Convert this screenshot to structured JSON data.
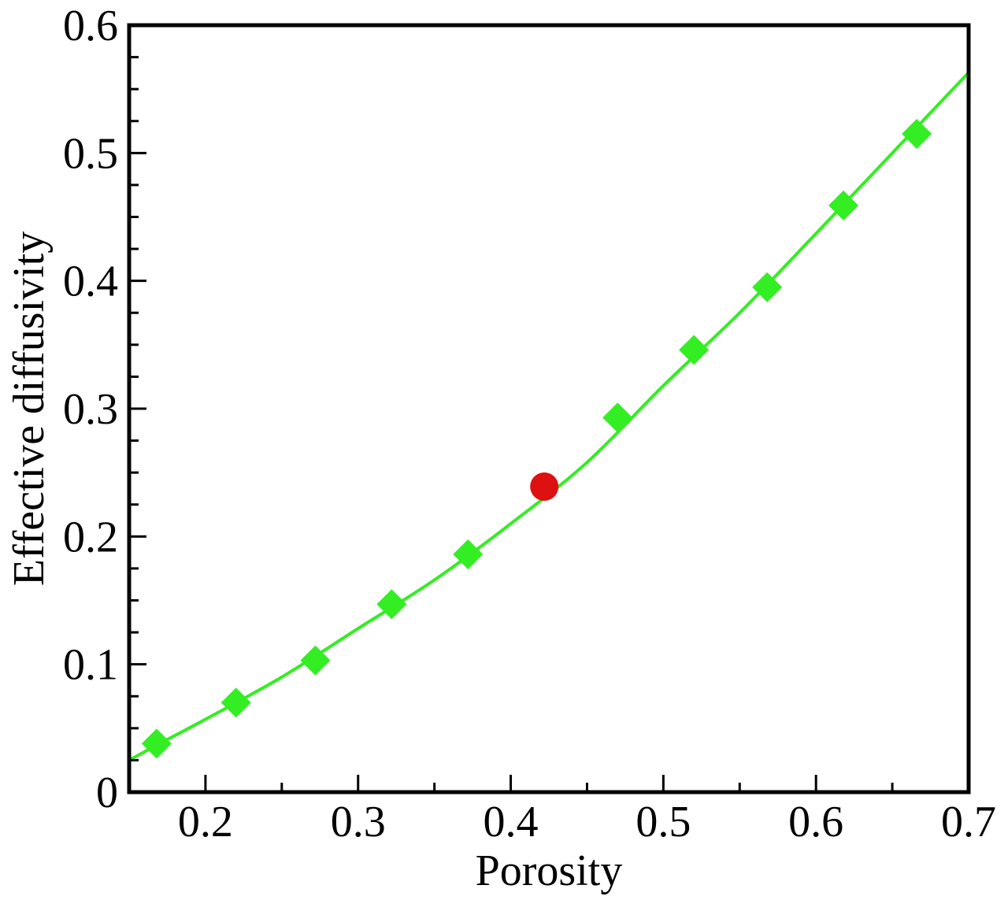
{
  "chart_data": {
    "type": "line",
    "title": "",
    "xlabel": "Porosity",
    "ylabel": "Effective diffusivity",
    "xlim": [
      0.15,
      0.7
    ],
    "ylim": [
      0,
      0.6
    ],
    "x_ticks": [
      "0.2",
      "0.3",
      "0.4",
      "0.5",
      "0.6",
      "0.7"
    ],
    "y_ticks": [
      "0",
      "0.1",
      "0.2",
      "0.3",
      "0.4",
      "0.5",
      "0.6"
    ],
    "x_tick_values": [
      0.2,
      0.3,
      0.4,
      0.5,
      0.6,
      0.7
    ],
    "y_tick_values": [
      0,
      0.1,
      0.2,
      0.3,
      0.4,
      0.5,
      0.6
    ],
    "x_minor_step": 0.05,
    "y_minor_step": 0.025,
    "grid": false,
    "legend": "none",
    "series": [
      {
        "marker": "line",
        "color": "#33ee22",
        "x": [
          0.15,
          0.17,
          0.2,
          0.25,
          0.3,
          0.35,
          0.4,
          0.45,
          0.5,
          0.55,
          0.6,
          0.65,
          0.7
        ],
        "y": [
          0.025,
          0.038,
          0.057,
          0.09,
          0.128,
          0.166,
          0.21,
          0.258,
          0.318,
          0.375,
          0.437,
          0.5,
          0.563
        ]
      },
      {
        "marker": "diamond",
        "color": "#33ee22",
        "x": [
          0.168,
          0.22,
          0.272,
          0.322,
          0.372,
          0.47,
          0.52,
          0.568,
          0.618,
          0.666
        ],
        "y": [
          0.038,
          0.07,
          0.103,
          0.147,
          0.186,
          0.293,
          0.346,
          0.395,
          0.459,
          0.515
        ]
      },
      {
        "marker": "circle",
        "color": "#dd1111",
        "x": [
          0.422
        ],
        "y": [
          0.239
        ]
      }
    ]
  }
}
